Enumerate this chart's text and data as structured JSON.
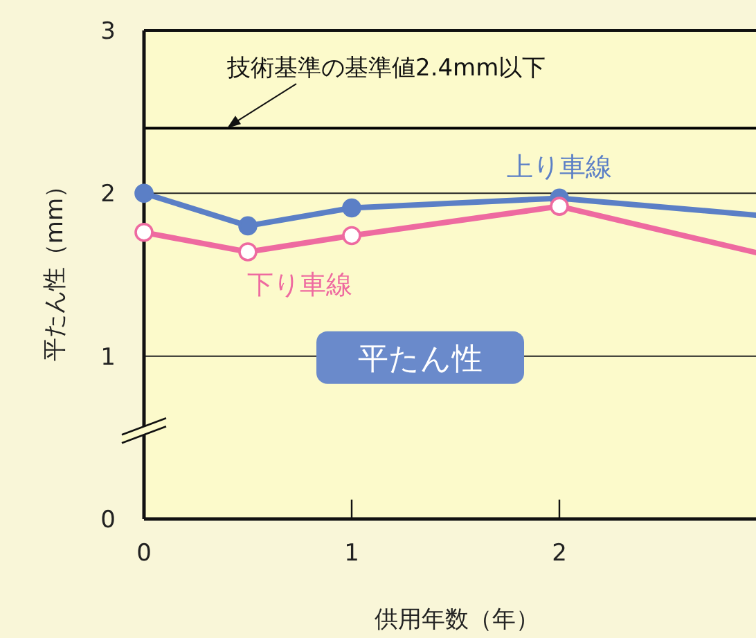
{
  "chart_data": {
    "type": "line",
    "xlabel": "供用年数（年）",
    "ylabel": "平たん性（mm）",
    "xlim": [
      0,
      3
    ],
    "xticks": [
      0,
      1,
      2
    ],
    "ylim": [
      0,
      3
    ],
    "yticks": [
      0,
      1,
      2,
      3
    ],
    "grid": "y",
    "marker": "circle",
    "line_style": "solid",
    "series": [
      {
        "name": "上り車線",
        "color": "#5b7fc6",
        "x": [
          0,
          0.5,
          1,
          2,
          3
        ],
        "values": [
          2.0,
          1.8,
          1.91,
          1.97,
          1.86
        ]
      },
      {
        "name": "下り車線",
        "color": "#ee6aa0",
        "x": [
          0,
          0.5,
          1,
          2,
          3
        ],
        "values": [
          1.76,
          1.64,
          1.74,
          1.92,
          1.62
        ]
      }
    ],
    "ref_lines": [
      {
        "axis": "y",
        "value": 2.4,
        "color": "#000000",
        "line_style": "solid"
      }
    ],
    "annotations": [
      {
        "text": "技術基準の基準値2.4mm以下",
        "x": 0.4,
        "y": 2.4
      },
      "平たん性"
    ]
  }
}
